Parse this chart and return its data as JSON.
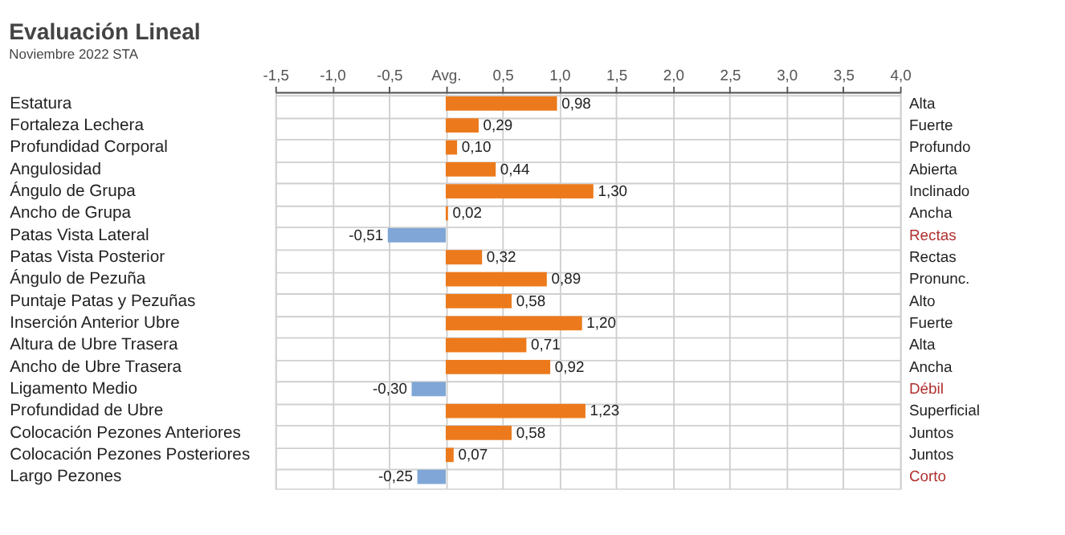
{
  "chart_data": {
    "type": "bar",
    "orientation": "horizontal",
    "title": "Evaluación Lineal",
    "subtitle": "Noviembre 2022 STA",
    "categories": [
      "Estatura",
      "Fortaleza Lechera",
      "Profundidad Corporal",
      "Angulosidad",
      "Ángulo de Grupa",
      "Ancho de Grupa",
      "Patas Vista Lateral",
      "Patas Vista Posterior",
      "Ángulo de Pezuña",
      "Puntaje Patas y Pezuñas",
      "Inserción Anterior Ubre",
      "Altura de Ubre Trasera",
      "Ancho de Ubre Trasera",
      "Ligamento Medio",
      "Profundidad de Ubre",
      "Colocación Pezones Anteriores",
      "Colocación Pezones Posteriores",
      "Largo Pezones"
    ],
    "y2_categories": [
      "Alta",
      "Fuerte",
      "Profundo",
      "Abierta",
      "Inclinado",
      "Ancha",
      "Rectas",
      "Rectas",
      "Pronunc.",
      "Alto",
      "Fuerte",
      "Alta",
      "Ancha",
      "Débil",
      "Superficial",
      "Juntos",
      "Juntos",
      "Corto"
    ],
    "values": [
      0.98,
      0.29,
      0.1,
      0.44,
      1.3,
      0.02,
      -0.51,
      0.32,
      0.89,
      0.58,
      1.2,
      0.71,
      0.92,
      -0.3,
      1.23,
      0.58,
      0.07,
      -0.25
    ],
    "value_labels": [
      "0,98",
      "0,29",
      "0,10",
      "0,44",
      "1,30",
      "0,02",
      "-0,51",
      "0,32",
      "0,89",
      "0,58",
      "1,20",
      "0,71",
      "0,92",
      "-0,30",
      "1,23",
      "0,58",
      "0,07",
      "-0,25"
    ],
    "colors": [
      "#ec7a1c",
      "#ec7a1c",
      "#ec7a1c",
      "#ec7a1c",
      "#ec7a1c",
      "#ec7a1c",
      "#7fa6d6",
      "#ec7a1c",
      "#ec7a1c",
      "#ec7a1c",
      "#ec7a1c",
      "#ec7a1c",
      "#ec7a1c",
      "#7fa6d6",
      "#ec7a1c",
      "#ec7a1c",
      "#ec7a1c",
      "#7fa6d6"
    ],
    "xlim": [
      -1.5,
      4.0
    ],
    "xticks": [
      {
        "value": -1.5,
        "label": "-1,5"
      },
      {
        "value": -1.0,
        "label": "-1,0"
      },
      {
        "value": -0.5,
        "label": "-0,5"
      },
      {
        "value": 0,
        "label": "Avg."
      },
      {
        "value": 0.5,
        "label": "0,5"
      },
      {
        "value": 1.0,
        "label": "1,0"
      },
      {
        "value": 1.5,
        "label": "1,5"
      },
      {
        "value": 2.0,
        "label": "2,0"
      },
      {
        "value": 2.5,
        "label": "2,5"
      },
      {
        "value": 3.0,
        "label": "3,0"
      },
      {
        "value": 3.5,
        "label": "3,5"
      },
      {
        "value": 4.0,
        "label": "4,0"
      }
    ],
    "grid": true
  }
}
